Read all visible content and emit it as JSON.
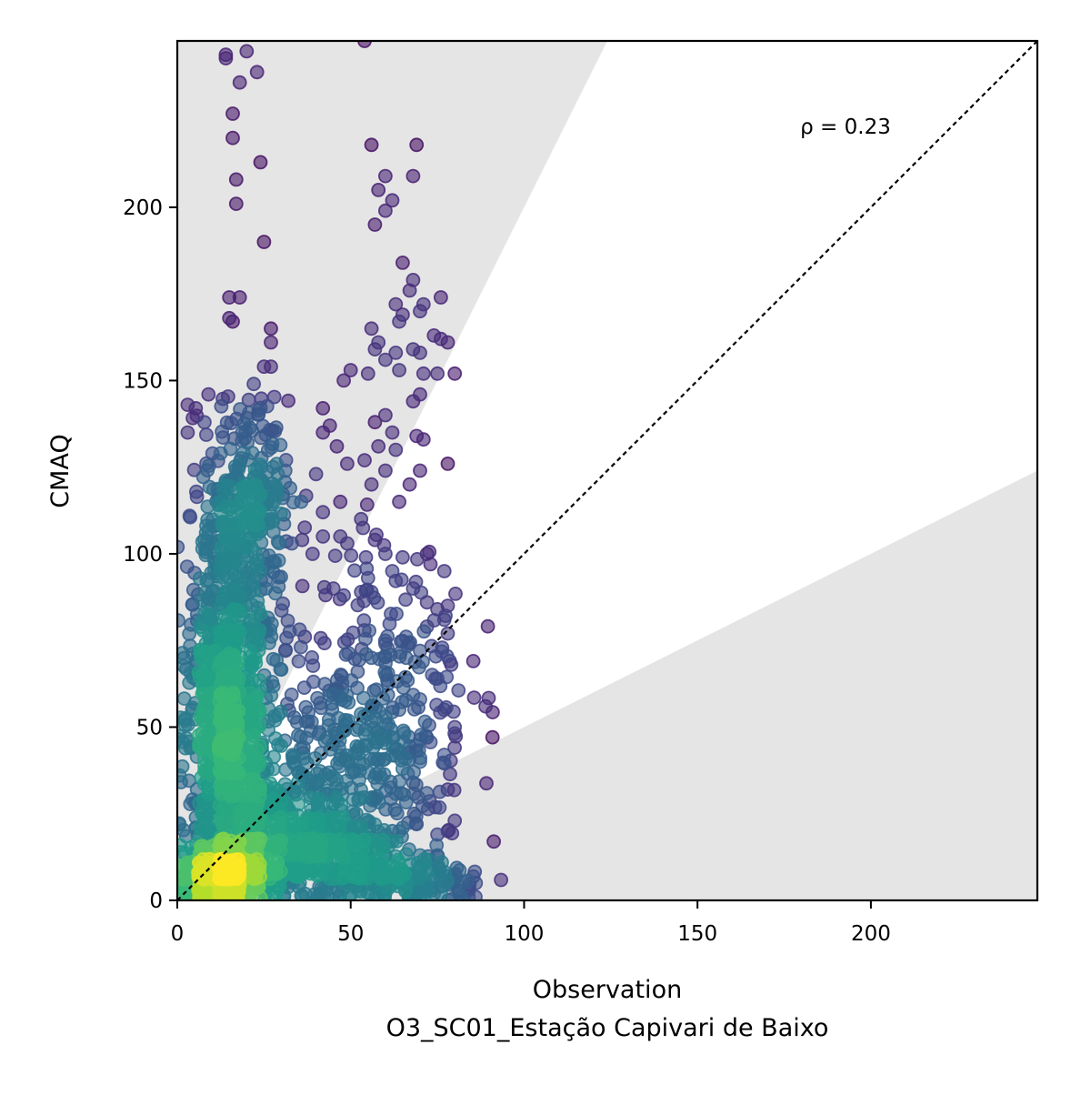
{
  "chart_data": {
    "type": "scatter",
    "title": "",
    "xlabel": "Observation",
    "xlabel_sub": "O3_SC01_Estação Capivari de Baixo",
    "ylabel": "CMAQ",
    "xlim": [
      0,
      248
    ],
    "ylim": [
      0,
      248
    ],
    "xticks": [
      0,
      50,
      100,
      150,
      200
    ],
    "yticks": [
      0,
      50,
      100,
      150,
      200
    ],
    "annotation": "ρ = 0.23",
    "reference_line": {
      "style": "dotted",
      "from": [
        0,
        0
      ],
      "to": [
        248,
        248
      ]
    },
    "shaded_regions": [
      {
        "description": "above 2:1 line",
        "boundary_slope": 2
      },
      {
        "description": "below 1:2 line",
        "boundary_slope": 0.5
      }
    ],
    "colormap": "viridis",
    "marker_alpha": 0.6,
    "density_clusters": [
      {
        "x": 12,
        "y": 5,
        "sx": 6,
        "sy": 4,
        "n": 500
      },
      {
        "x": 14,
        "y": 45,
        "sx": 6,
        "sy": 18,
        "n": 600
      },
      {
        "x": 16,
        "y": 85,
        "sx": 7,
        "sy": 22,
        "n": 400
      },
      {
        "x": 20,
        "y": 120,
        "sx": 6,
        "sy": 12,
        "n": 160
      },
      {
        "x": 30,
        "y": 15,
        "sx": 14,
        "sy": 10,
        "n": 500
      },
      {
        "x": 45,
        "y": 35,
        "sx": 14,
        "sy": 18,
        "n": 300
      },
      {
        "x": 60,
        "y": 60,
        "sx": 12,
        "sy": 22,
        "n": 200
      },
      {
        "x": 65,
        "y": 5,
        "sx": 12,
        "sy": 4,
        "n": 200
      }
    ],
    "points": [
      [
        14,
        244
      ],
      [
        20,
        245
      ],
      [
        14,
        243
      ],
      [
        23,
        239
      ],
      [
        18,
        236
      ],
      [
        54,
        248
      ],
      [
        16,
        227
      ],
      [
        16,
        220
      ],
      [
        24,
        213
      ],
      [
        17,
        208
      ],
      [
        17,
        201
      ],
      [
        25,
        190
      ],
      [
        56,
        218
      ],
      [
        69,
        218
      ],
      [
        58,
        205
      ],
      [
        60,
        209
      ],
      [
        68,
        209
      ],
      [
        62,
        202
      ],
      [
        57,
        195
      ],
      [
        60,
        199
      ],
      [
        65,
        184
      ],
      [
        68,
        179
      ],
      [
        67,
        176
      ],
      [
        63,
        172
      ],
      [
        71,
        172
      ],
      [
        70,
        170
      ],
      [
        65,
        169
      ],
      [
        76,
        174
      ],
      [
        64,
        167
      ],
      [
        56,
        165
      ],
      [
        15,
        174
      ],
      [
        18,
        174
      ],
      [
        15,
        168
      ],
      [
        16,
        167
      ],
      [
        27,
        165
      ],
      [
        76,
        162
      ],
      [
        74,
        163
      ],
      [
        78,
        161
      ],
      [
        27,
        161
      ],
      [
        58,
        161
      ],
      [
        63,
        158
      ],
      [
        68,
        159
      ],
      [
        70,
        158
      ],
      [
        57,
        159
      ],
      [
        60,
        156
      ],
      [
        75,
        152
      ],
      [
        80,
        152
      ],
      [
        71,
        152
      ],
      [
        50,
        153
      ],
      [
        48,
        150
      ],
      [
        55,
        152
      ],
      [
        64,
        153
      ],
      [
        25,
        154
      ],
      [
        27,
        154
      ],
      [
        3,
        143
      ],
      [
        9,
        146
      ],
      [
        70,
        146
      ],
      [
        68,
        144
      ],
      [
        60,
        140
      ],
      [
        57,
        138
      ],
      [
        3,
        135
      ],
      [
        42,
        142
      ],
      [
        42,
        135
      ],
      [
        44,
        137
      ],
      [
        62,
        135
      ],
      [
        58,
        131
      ],
      [
        46,
        131
      ],
      [
        63,
        130
      ],
      [
        54,
        127
      ],
      [
        49,
        126
      ],
      [
        40,
        123
      ],
      [
        29,
        123
      ],
      [
        78,
        126
      ],
      [
        71,
        133
      ],
      [
        69,
        134
      ],
      [
        70,
        124
      ],
      [
        56,
        120
      ],
      [
        60,
        124
      ],
      [
        67,
        120
      ],
      [
        42,
        112
      ],
      [
        47,
        115
      ],
      [
        53,
        110
      ],
      [
        57,
        104
      ],
      [
        64,
        115
      ],
      [
        47,
        105
      ],
      [
        42,
        105
      ],
      [
        39,
        100
      ],
      [
        36,
        104
      ],
      [
        33,
        103
      ],
      [
        49,
        103
      ],
      [
        60,
        100
      ],
      [
        65,
        99
      ],
      [
        72,
        100
      ],
      [
        73,
        97
      ],
      [
        77,
        95
      ],
      [
        62,
        95
      ],
      [
        55,
        93
      ],
      [
        53,
        89
      ],
      [
        45,
        90
      ],
      [
        48,
        88
      ],
      [
        56,
        89
      ],
      [
        68,
        90
      ],
      [
        75,
        84
      ],
      [
        72,
        86
      ],
      [
        78,
        85
      ],
      [
        77,
        81
      ],
      [
        72,
        79
      ],
      [
        78,
        77
      ],
      [
        79,
        68
      ],
      [
        66,
        70
      ],
      [
        70,
        72
      ],
      [
        60,
        74
      ],
      [
        56,
        70
      ],
      [
        52,
        66
      ],
      [
        75,
        64
      ],
      [
        70,
        58
      ],
      [
        77,
        55
      ],
      [
        64,
        55
      ],
      [
        60,
        53
      ],
      [
        72,
        47
      ],
      [
        80,
        50
      ],
      [
        77,
        42
      ],
      [
        70,
        40
      ],
      [
        65,
        38
      ],
      [
        68,
        34
      ],
      [
        78,
        32
      ],
      [
        80,
        23
      ],
      [
        78,
        20
      ],
      [
        75,
        19
      ],
      [
        69,
        22
      ],
      [
        62,
        20
      ],
      [
        62,
        17
      ],
      [
        70,
        13
      ],
      [
        75,
        13
      ],
      [
        60,
        13
      ],
      [
        64,
        11
      ],
      [
        70,
        9
      ],
      [
        76,
        4
      ],
      [
        81,
        3
      ],
      [
        82,
        1
      ],
      [
        84,
        1
      ],
      [
        86,
        1
      ],
      [
        78,
        7
      ],
      [
        74,
        2
      ]
    ]
  }
}
